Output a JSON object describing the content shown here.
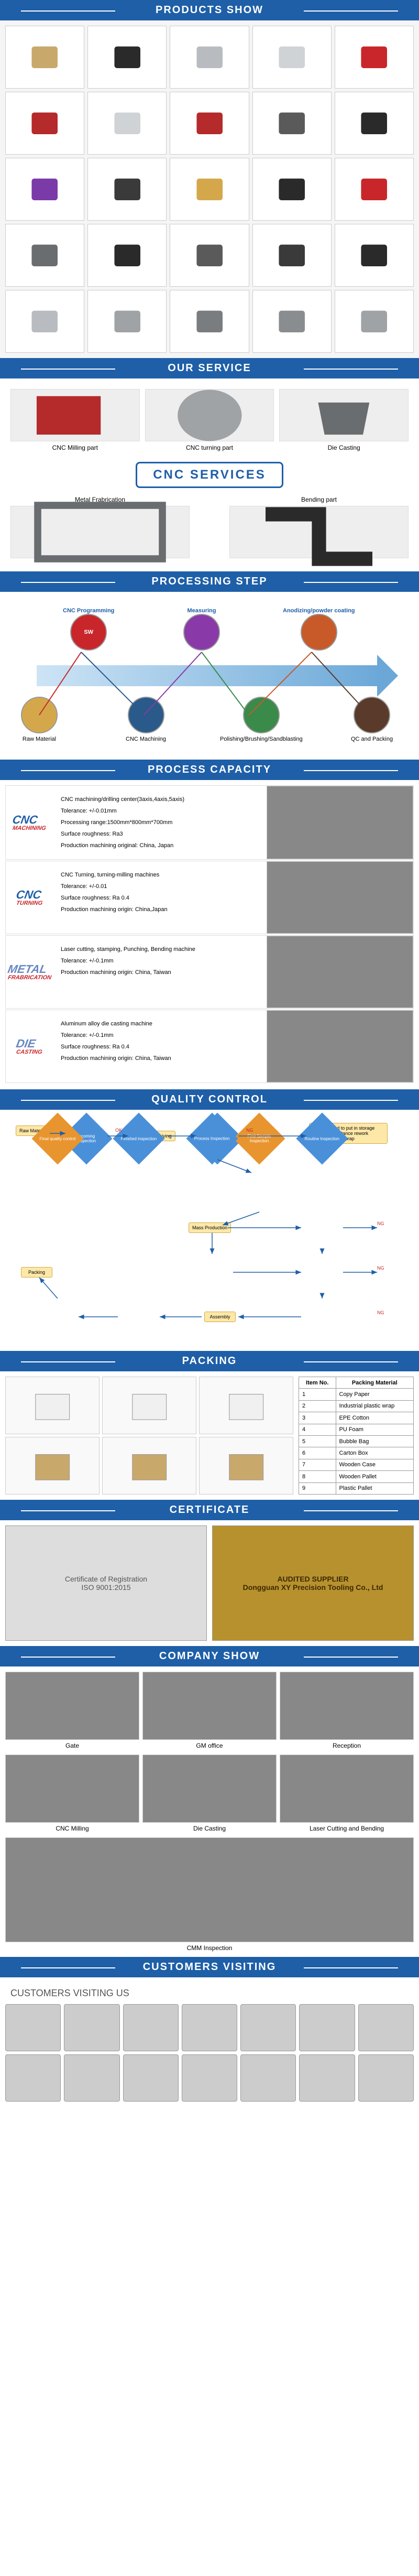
{
  "sections": {
    "products": "PRODUCTS SHOW",
    "service": "OUR SERVICE",
    "processing": "PROCESSING STEP",
    "capacity": "PROCESS CAPACITY",
    "quality": "QUALITY CONTROL",
    "packing": "PACKING",
    "certificate": "CERTIFICATE",
    "company": "COMPANY SHOW",
    "customers": "CUSTOMERS  VISITING"
  },
  "product_colors": [
    "#c9a86b",
    "#2a2a2a",
    "#b8bcc0",
    "#cfd3d6",
    "#c8262a",
    "#b52a2a",
    "#cfd3d6",
    "#b52a2a",
    "#5a5a5a",
    "#2a2a2a",
    "#7a3aa8",
    "#3a3a3a",
    "#d4a84a",
    "#2a2a2a",
    "#c8262a",
    "#6a6d70",
    "#2a2a2a",
    "#5a5a5a",
    "#3a3a3a",
    "#2a2a2a",
    "#b8bcc0",
    "#9fa3a6",
    "#7a7d80",
    "#8a8d90",
    "#9fa3a6"
  ],
  "service": {
    "milling": "CNC Milling part",
    "turning": "CNC turning part",
    "diecast": "Die Casting",
    "metal": "Metal Frabrication",
    "bending": "Bending part",
    "banner": "CNC SERVICES"
  },
  "process": {
    "top1": "CNC Programming",
    "top2": "Measuring",
    "top3": "Anodizing/powder coating",
    "bot1": "Raw Material",
    "bot2": "CNC Machining",
    "bot3": "Polishing/Brushing/Sandblasting",
    "bot4": "QC and Packing",
    "colors": {
      "raw": "#d4a84a",
      "sw": "#c8262a",
      "mach": "#2a5a8a",
      "meas": "#8a3aa8",
      "pol": "#3a8a4a",
      "anod": "#c85a2a",
      "qc": "#5a3a2a"
    }
  },
  "capacity": [
    {
      "title": "CNC",
      "sub": "MACHINING",
      "color": "#1e5fa8",
      "lines": [
        "CNC machining/drilling center(3axis,4axis,5axis)",
        "Tolerance: +/-0.01mm",
        "Processing range:1500mm*800mm*700mm",
        "Surface roughness: Ra3",
        "Production machining original: China, Japan"
      ]
    },
    {
      "title": "CNC",
      "sub": "TURNING",
      "color": "#1e5fa8",
      "lines": [
        "CNC Turning, turning-milling machines",
        "Tolerance: +/-0.01",
        "Surface roughness: Ra 0.4",
        "Production machining origin: China,Japan"
      ]
    },
    {
      "title": "METAL",
      "sub": "FRABRICATION",
      "color": "#6a88c4",
      "lines": [
        "Laser cutting, stamping, Punching, Bending machine",
        "Tolerance: +/-0.1mm",
        "Production machining origin: China, Taiwan"
      ]
    },
    {
      "title": "DIE",
      "sub": "CASTING",
      "color": "#6a88c4",
      "lines": [
        "Aluminum alloy die casting machine",
        "Tolerance: +/-0.1mm",
        "Surface roughness: Ra 0.4",
        "Production machining origin: China, Taiwan"
      ]
    }
  ],
  "qc_nodes": {
    "raw": "Raw Material",
    "incoming": "Incoming Inspection",
    "matrec": "Material receiving",
    "prod": "Production Inspection",
    "refused": "Refused to put in storage\nAcceptance rework\nScrap",
    "first": "First Sample Inspection",
    "mass": "Mass Production",
    "routine1": "Routine Inspection",
    "packing": "Packing",
    "process": "Process Inspection",
    "routine2": "Routine Inspection",
    "final": "Final quality control",
    "finished": "Finished inspection",
    "assembly": "Assembly",
    "routine3": "Routine Inspection",
    "ng": "NG",
    "ok": "OK"
  },
  "packing_table": {
    "h1": "Item No.",
    "h2": "Packing Material",
    "rows": [
      [
        "1",
        "Copy Paper"
      ],
      [
        "2",
        "Industrial plastic wrap"
      ],
      [
        "3",
        "EPE Cotton"
      ],
      [
        "4",
        "PU Foam"
      ],
      [
        "5",
        "Bubble Bag"
      ],
      [
        "6",
        "Carton Box"
      ],
      [
        "7",
        "Wooden Case"
      ],
      [
        "8",
        "Wooden Pallet"
      ],
      [
        "9",
        "Plastic Pallet"
      ]
    ]
  },
  "cert": {
    "left": "Certificate of Registration\nISO 9001:2015",
    "right": "AUDITED SUPPLIER\nDongguan XY Precision Tooling Co., Ltd"
  },
  "company": {
    "row1": [
      "Gate",
      "GM office",
      "Reception"
    ],
    "row2": [
      "CNC Milling",
      "Die Casting",
      "Laser Cutting and Bending"
    ],
    "wide": "CMM Inspection"
  },
  "customers_title": "CUSTOMERS VISITING US",
  "customers_count": 14
}
